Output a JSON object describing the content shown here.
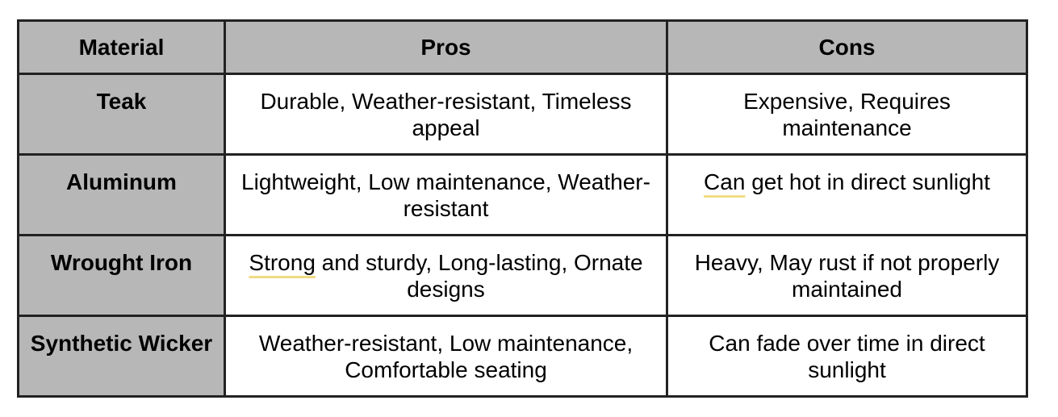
{
  "table": {
    "headers": [
      "Material",
      "Pros",
      "Cons"
    ],
    "rows": [
      {
        "material": "Teak",
        "pros": "Durable, Weather-resistant, Timeless appeal",
        "cons": "Expensive, Requires maintenance"
      },
      {
        "material": "Aluminum",
        "pros": "Lightweight, Low maintenance, Weather-resistant",
        "cons_highlight": "Can",
        "cons_rest": " get hot in direct sunlight"
      },
      {
        "material": "Wrought Iron",
        "pros_highlight": "Strong",
        "pros_rest": " and sturdy, Long-lasting, Ornate designs",
        "cons": "Heavy, May rust if not properly maintained"
      },
      {
        "material": "Synthetic Wicker",
        "pros": "Weather-resistant, Low maintenance, Comfortable seating",
        "cons": "Can fade over time in direct sunlight"
      }
    ]
  },
  "colors": {
    "header_bg": "#b7b7b7",
    "border": "#222222",
    "spellcheck_underline": "#f1dc84"
  }
}
